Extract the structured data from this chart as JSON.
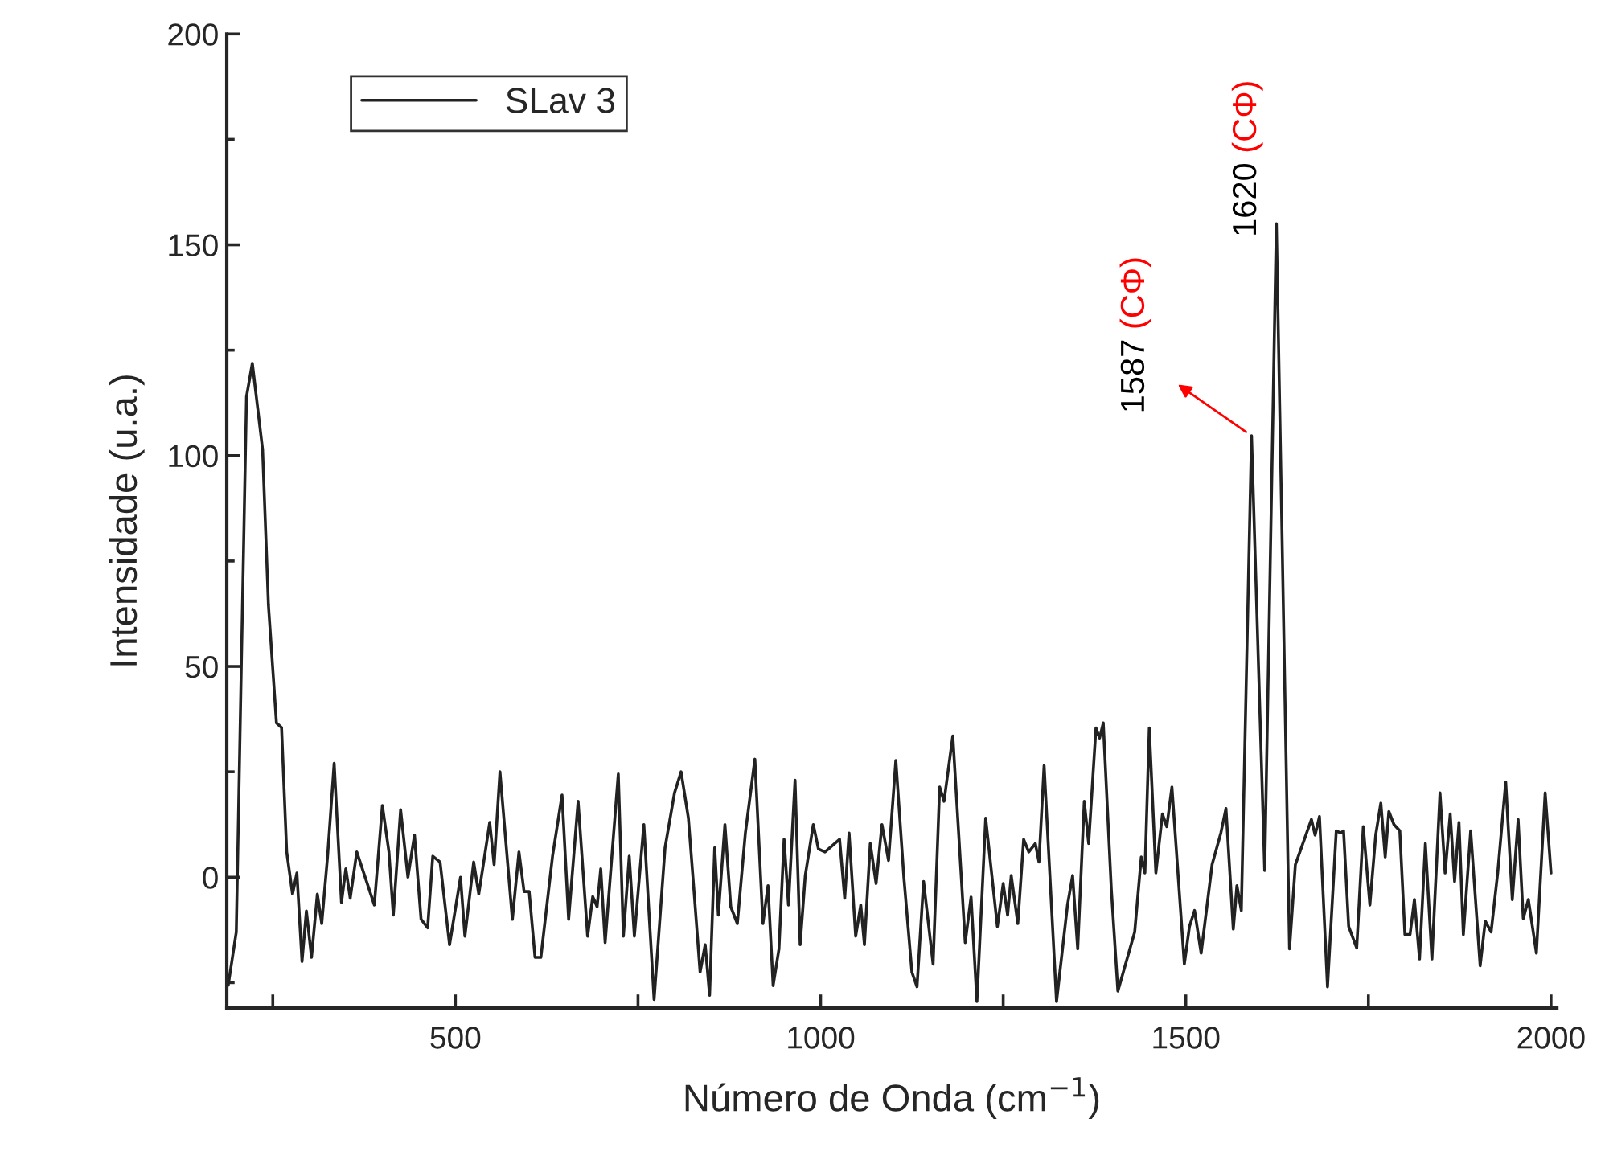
{
  "chart_data": {
    "type": "line",
    "xlabel": "Número de Onda (cm$^{−1}$)",
    "ylabel": "Intensidade (u.a.)",
    "xlim": [
      187,
      2008
    ],
    "ylim": [
      -31,
      200
    ],
    "xticks": [
      {
        "value": 250,
        "label": null
      },
      500,
      {
        "value": 750,
        "label": null
      },
      1000,
      {
        "value": 1250,
        "label": null
      },
      1500,
      {
        "value": 1750,
        "label": null
      },
      2000
    ],
    "yticks": [
      {
        "value": -25,
        "label": null
      },
      0,
      {
        "value": 25,
        "label": null
      },
      50,
      {
        "value": 75,
        "label": null
      },
      100,
      {
        "value": 125,
        "label": null
      },
      150,
      {
        "value": 175,
        "label": null
      },
      200
    ],
    "legend": "top left",
    "grid": false,
    "annotations": [
      {
        "text": "1587 (CΦ)",
        "x": 1590,
        "y": 104.7
      },
      {
        "text": "1620 (CΦ)",
        "x": 1624,
        "y": 155
      }
    ],
    "series": [
      {
        "name": "SLav 3",
        "color": "#222222",
        "x": [
          189,
          200,
          207,
          214,
          222,
          236,
          244,
          255,
          262,
          269,
          277,
          283,
          290,
          296,
          303,
          311,
          317,
          325,
          334,
          344,
          350,
          356,
          365,
          376,
          389,
          400,
          409,
          415,
          425,
          435,
          444,
          453,
          462,
          469,
          479,
          492,
          507,
          513,
          525,
          532,
          540,
          547,
          553,
          561,
          578,
          587,
          594,
          601,
          609,
          617,
          633,
          646,
          655,
          668,
          681,
          688,
          694,
          699,
          705,
          723,
          730,
          738,
          745,
          758,
          772,
          787,
          800,
          809,
          819,
          827,
          835,
          842,
          848,
          855,
          860,
          869,
          877,
          886,
          897,
          910,
          921,
          928,
          935,
          943,
          950,
          956,
          965,
          972,
          979,
          990,
          997,
          1006,
          1016,
          1026,
          1033,
          1039,
          1048,
          1055,
          1060,
          1068,
          1076,
          1084,
          1093,
          1103,
          1114,
          1125,
          1132,
          1141,
          1154,
          1163,
          1169,
          1181,
          1198,
          1206,
          1214,
          1226,
          1242,
          1250,
          1256,
          1261,
          1270,
          1278,
          1285,
          1294,
          1299,
          1306,
          1323,
          1338,
          1345,
          1352,
          1361,
          1367,
          1377,
          1382,
          1387,
          1398,
          1407,
          1411,
          1422,
          1430,
          1439,
          1444,
          1450,
          1459,
          1468,
          1474,
          1481,
          1498,
          1505,
          1512,
          1521,
          1536,
          1548,
          1555,
          1565,
          1570,
          1576,
          1590,
          1608,
          1624,
          1642,
          1650,
          1659,
          1672,
          1677,
          1683,
          1694,
          1706,
          1712,
          1716,
          1723,
          1734,
          1743,
          1752,
          1760,
          1767,
          1773,
          1778,
          1785,
          1793,
          1800,
          1807,
          1813,
          1820,
          1828,
          1837,
          1848,
          1855,
          1862,
          1868,
          1874,
          1880,
          1890,
          1903,
          1910,
          1918,
          1927,
          1938,
          1947,
          1955,
          1962,
          1969,
          1980,
          1992,
          2000
        ],
        "values": [
          -25.6,
          -13,
          51,
          114,
          121.9,
          101.5,
          64.6,
          36.6,
          35.5,
          6,
          -4,
          1,
          -20,
          -8,
          -19,
          -4,
          -11,
          5,
          27,
          -6,
          2,
          -5,
          6,
          null,
          -6.6,
          17,
          6,
          -9,
          16,
          0,
          10,
          -10,
          -12,
          5,
          3.6,
          -16,
          0,
          -14,
          3.6,
          -4,
          5,
          13,
          3,
          25,
          -10,
          6,
          -3.4,
          -3.4,
          -19,
          -19,
          5,
          19.5,
          -10,
          18,
          -14,
          -4.6,
          -7,
          2,
          -15.5,
          24.5,
          -14,
          5,
          -14,
          12.5,
          -29,
          7,
          20,
          25,
          14,
          -4,
          -22.5,
          -16,
          -28,
          7,
          -9,
          12.5,
          -7,
          -11,
          10.5,
          28,
          -11,
          -2,
          -25.7,
          -17,
          9,
          -6.6,
          23,
          -16,
          0.4,
          12.5,
          6.7,
          6,
          null,
          9,
          -5,
          10.5,
          -14,
          -6.6,
          -16,
          8,
          -1.5,
          12.5,
          4,
          27.7,
          0,
          -22.5,
          -26,
          -1,
          -20.6,
          21.4,
          18,
          33.5,
          -15.5,
          -4.7,
          -29.5,
          14,
          -11.7,
          -1.5,
          -9,
          0.4,
          -11,
          9,
          6,
          8,
          3.6,
          26.5,
          -29.5,
          -6.6,
          0.4,
          -17,
          18,
          8,
          35.4,
          33,
          36.6,
          -2.8,
          -27,
          null,
          null,
          -13,
          4.8,
          1,
          35.4,
          1,
          15,
          12,
          21.4,
          -20.6,
          -11.7,
          -7.9,
          -18,
          3,
          10.5,
          16.3,
          -12.3,
          -2,
          -7.9,
          104.7,
          1.6,
          155,
          -17,
          3,
          null,
          13.7,
          10,
          14.4,
          -26,
          11,
          10.5,
          11,
          -11.7,
          -16.8,
          12,
          -6.6,
          10,
          17.6,
          4.8,
          15.6,
          12.5,
          11,
          -13.6,
          -13.6,
          -5.3,
          -19.4,
          8,
          -19.4,
          20,
          1,
          15,
          -1,
          13,
          -13.6,
          11,
          -21,
          -10.4,
          -13,
          1,
          22.6,
          -5.3,
          13.7,
          -9.8,
          -5.3,
          -18,
          20,
          1
        ]
      }
    ]
  }
}
